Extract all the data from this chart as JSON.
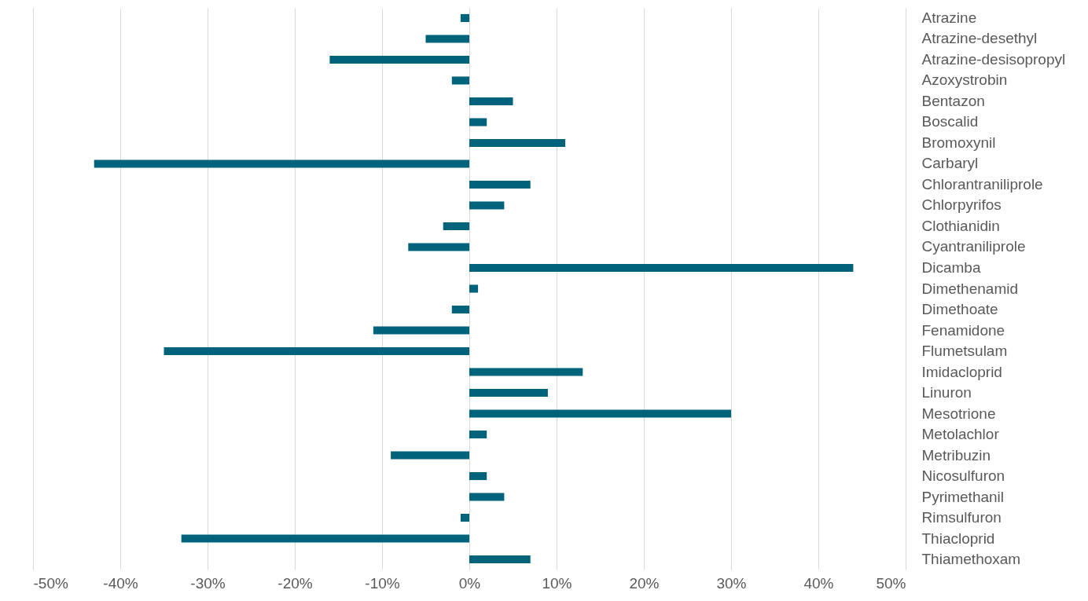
{
  "chart_data": {
    "type": "bar",
    "orientation": "horizontal",
    "categories": [
      "Atrazine",
      "Atrazine-desethyl",
      "Atrazine-desisopropyl",
      "Azoxystrobin",
      "Bentazon",
      "Boscalid",
      "Bromoxynil",
      "Carbaryl",
      "Chlorantraniliprole",
      "Chlorpyrifos",
      "Clothianidin",
      "Cyantraniliprole",
      "Dicamba",
      "Dimethenamid",
      "Dimethoate",
      "Fenamidone",
      "Flumetsulam",
      "Imidacloprid",
      "Linuron",
      "Mesotrione",
      "Metolachlor",
      "Metribuzin",
      "Nicosulfuron",
      "Pyrimethanil",
      "Rimsulfuron",
      "Thiacloprid",
      "Thiamethoxam"
    ],
    "values": [
      -1,
      -5,
      -16,
      -2,
      5,
      2,
      11,
      -43,
      7,
      4,
      -3,
      -7,
      44,
      1,
      -2,
      -11,
      -35,
      13,
      9,
      30,
      2,
      -9,
      2,
      4,
      -1,
      -33,
      7
    ],
    "color": "#00637c",
    "xlim": [
      -50,
      50
    ],
    "xticks": [
      {
        "value": -50,
        "label": "-50%"
      },
      {
        "value": -40,
        "label": "-40%"
      },
      {
        "value": -30,
        "label": "-30%"
      },
      {
        "value": -20,
        "label": "-20%"
      },
      {
        "value": -10,
        "label": "-10%"
      },
      {
        "value": 0,
        "label": "0%"
      },
      {
        "value": 10,
        "label": "10%"
      },
      {
        "value": 20,
        "label": "20%"
      },
      {
        "value": 30,
        "label": "30%"
      },
      {
        "value": 40,
        "label": "40%"
      },
      {
        "value": 50,
        "label": "50%"
      }
    ],
    "grid": "x"
  }
}
